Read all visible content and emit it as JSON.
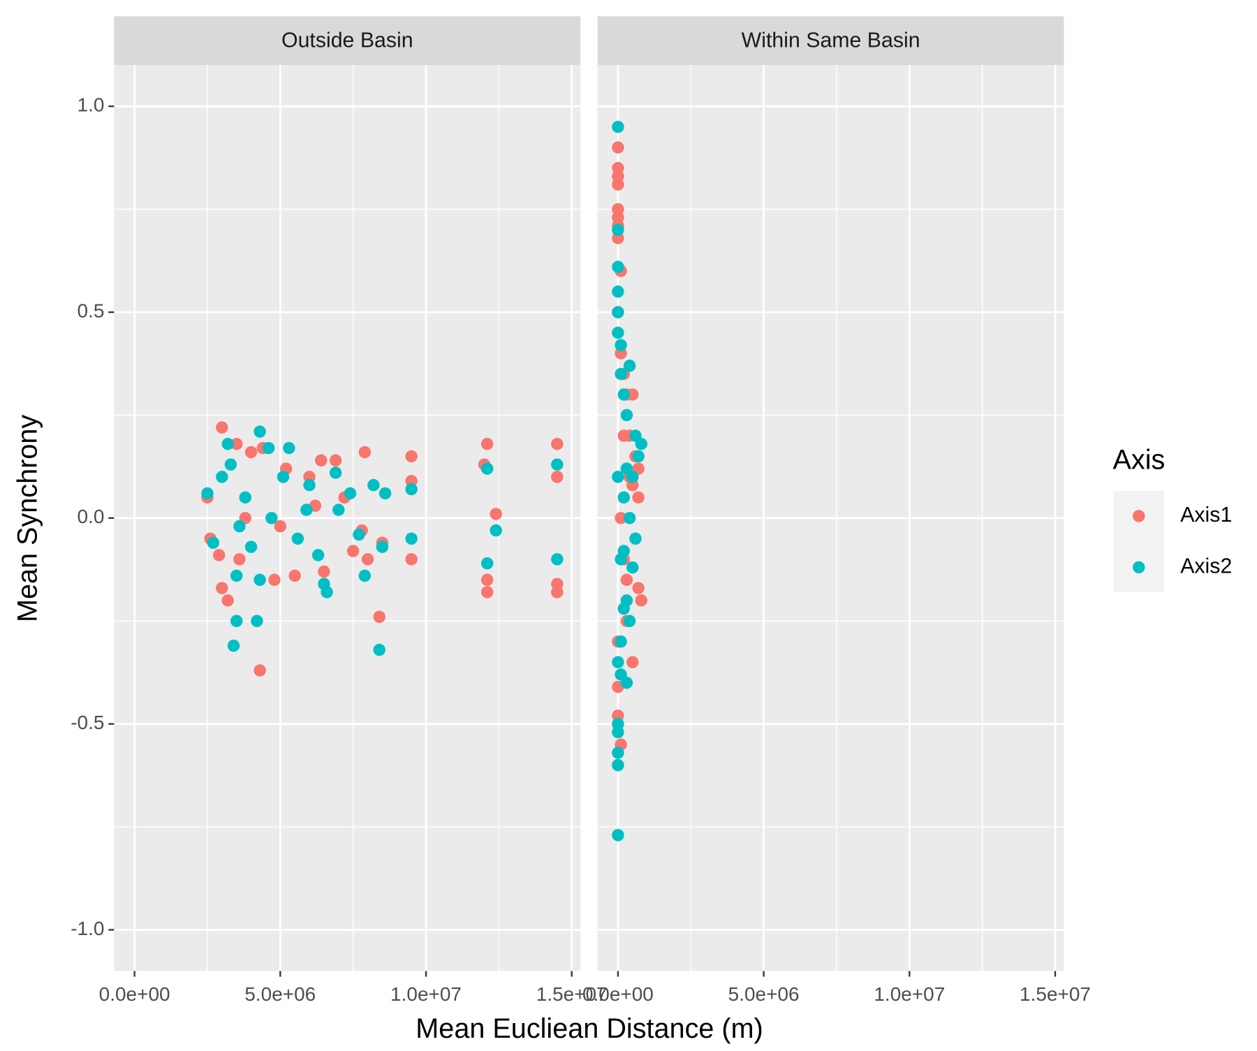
{
  "chart_data": {
    "type": "scatter",
    "x_label": "Mean Eucliean Distance (m)",
    "y_label": "Mean Synchrony",
    "legend_title": "Axis",
    "legend": "right",
    "grid": true,
    "xlim": [
      -700000,
      15300000
    ],
    "ylim": [
      -1.1,
      1.1
    ],
    "xticks": [
      {
        "value": 0,
        "label": "0.0e+00"
      },
      {
        "value": 5000000,
        "label": "5.0e+06"
      },
      {
        "value": 10000000,
        "label": "1.0e+07"
      },
      {
        "value": 15000000,
        "label": "1.5e+07"
      }
    ],
    "yticks": [
      {
        "value": -1,
        "label": "-1.0"
      },
      {
        "value": -0.5,
        "label": "-0.5"
      },
      {
        "value": 0,
        "label": "0.0"
      },
      {
        "value": 0.5,
        "label": "0.5"
      },
      {
        "value": 1,
        "label": "1.0"
      }
    ],
    "xminor": [
      2500000,
      7500000,
      12500000
    ],
    "yminor": [
      -0.75,
      -0.25,
      0.25,
      0.75
    ],
    "series": [
      {
        "name": "Axis1",
        "color": "#f8766d"
      },
      {
        "name": "Axis2",
        "color": "#00bfc4"
      }
    ],
    "panels": [
      {
        "title": "Outside Basin",
        "series": [
          {
            "x": [
              3000000,
              3200000,
              4300000,
              8400000,
              4000000,
              3500000,
              7900000,
              9500000,
              9500000,
              12100000,
              12100000,
              12100000,
              14500000,
              14500000,
              14500000,
              12400000,
              2600000,
              2900000,
              3600000,
              4800000,
              5500000,
              6400000,
              6900000,
              6500000,
              7500000,
              8000000,
              5200000,
              4400000,
              3000000,
              6000000,
              7200000,
              8500000,
              9500000,
              12000000,
              14500000,
              2500000,
              3800000,
              5000000,
              6200000,
              7800000
            ],
            "y": [
              0.22,
              -0.2,
              -0.37,
              -0.24,
              0.16,
              0.18,
              0.16,
              0.15,
              -0.1,
              0.18,
              -0.18,
              -0.15,
              0.18,
              -0.18,
              -0.16,
              0.01,
              -0.05,
              -0.09,
              -0.1,
              -0.15,
              -0.14,
              0.14,
              0.14,
              -0.13,
              -0.08,
              -0.1,
              0.12,
              0.17,
              -0.17,
              0.1,
              0.05,
              -0.06,
              0.09,
              0.13,
              0.1,
              0.05,
              0,
              -0.02,
              0.03,
              -0.03
            ]
          },
          {
            "x": [
              3400000,
              3500000,
              4200000,
              8400000,
              4300000,
              3200000,
              4600000,
              5300000,
              4300000,
              3500000,
              6600000,
              6500000,
              7900000,
              8600000,
              9500000,
              9500000,
              12100000,
              12100000,
              14500000,
              14500000,
              12400000,
              2500000,
              2700000,
              3000000,
              3300000,
              3800000,
              4000000,
              4700000,
              5100000,
              5600000,
              6000000,
              6300000,
              6900000,
              7400000,
              7700000,
              8200000,
              8500000,
              5900000,
              7000000,
              3600000
            ],
            "y": [
              -0.31,
              -0.25,
              -0.25,
              -0.32,
              0.21,
              0.18,
              0.17,
              0.17,
              -0.15,
              -0.14,
              -0.18,
              -0.16,
              -0.14,
              0.06,
              0.07,
              -0.05,
              0.12,
              -0.11,
              0.13,
              -0.1,
              -0.03,
              0.06,
              -0.06,
              0.1,
              0.13,
              0.05,
              -0.07,
              0,
              0.1,
              -0.05,
              0.08,
              -0.09,
              0.11,
              0.06,
              -0.04,
              0.08,
              -0.07,
              0.02,
              0.02,
              -0.02
            ]
          }
        ]
      },
      {
        "title": "Within Same Basin",
        "series": [
          {
            "x": [
              0,
              0,
              0,
              0,
              0,
              0,
              0,
              0,
              100000,
              0,
              100000,
              200000,
              300000,
              500000,
              400000,
              600000,
              700000,
              800000,
              700000,
              500000,
              300000,
              0,
              0,
              0,
              100000,
              0,
              200000,
              400000,
              600000,
              100000,
              200000,
              300000,
              0,
              500000,
              700000
            ],
            "y": [
              0.9,
              0.85,
              0.83,
              0.81,
              0.75,
              0.73,
              0.71,
              0.68,
              0.6,
              0.5,
              0.4,
              0.35,
              0.3,
              0.3,
              0.2,
              0.15,
              0.05,
              -0.2,
              -0.17,
              -0.35,
              -0.25,
              -0.41,
              -0.48,
              -0.5,
              -0.55,
              -0.6,
              -0.1,
              0.1,
              -0.05,
              0,
              0.2,
              -0.15,
              -0.3,
              0.08,
              0.12
            ]
          },
          {
            "x": [
              0,
              0,
              0,
              0,
              0,
              0,
              100000,
              400000,
              200000,
              300000,
              600000,
              800000,
              700000,
              500000,
              400000,
              600000,
              500000,
              300000,
              200000,
              100000,
              0,
              100000,
              300000,
              0,
              0,
              0,
              0,
              0,
              200000,
              100000,
              300000,
              0,
              200000,
              400000,
              100000
            ],
            "y": [
              0.95,
              0.7,
              0.61,
              0.55,
              0.5,
              0.45,
              0.42,
              0.37,
              0.3,
              0.25,
              0.2,
              0.18,
              0.15,
              0.1,
              0,
              -0.05,
              -0.12,
              -0.2,
              -0.22,
              -0.3,
              -0.35,
              -0.38,
              -0.4,
              -0.5,
              -0.52,
              -0.57,
              -0.6,
              -0.77,
              0.05,
              -0.1,
              0.12,
              0.1,
              -0.08,
              -0.25,
              0.35
            ]
          }
        ]
      }
    ]
  }
}
